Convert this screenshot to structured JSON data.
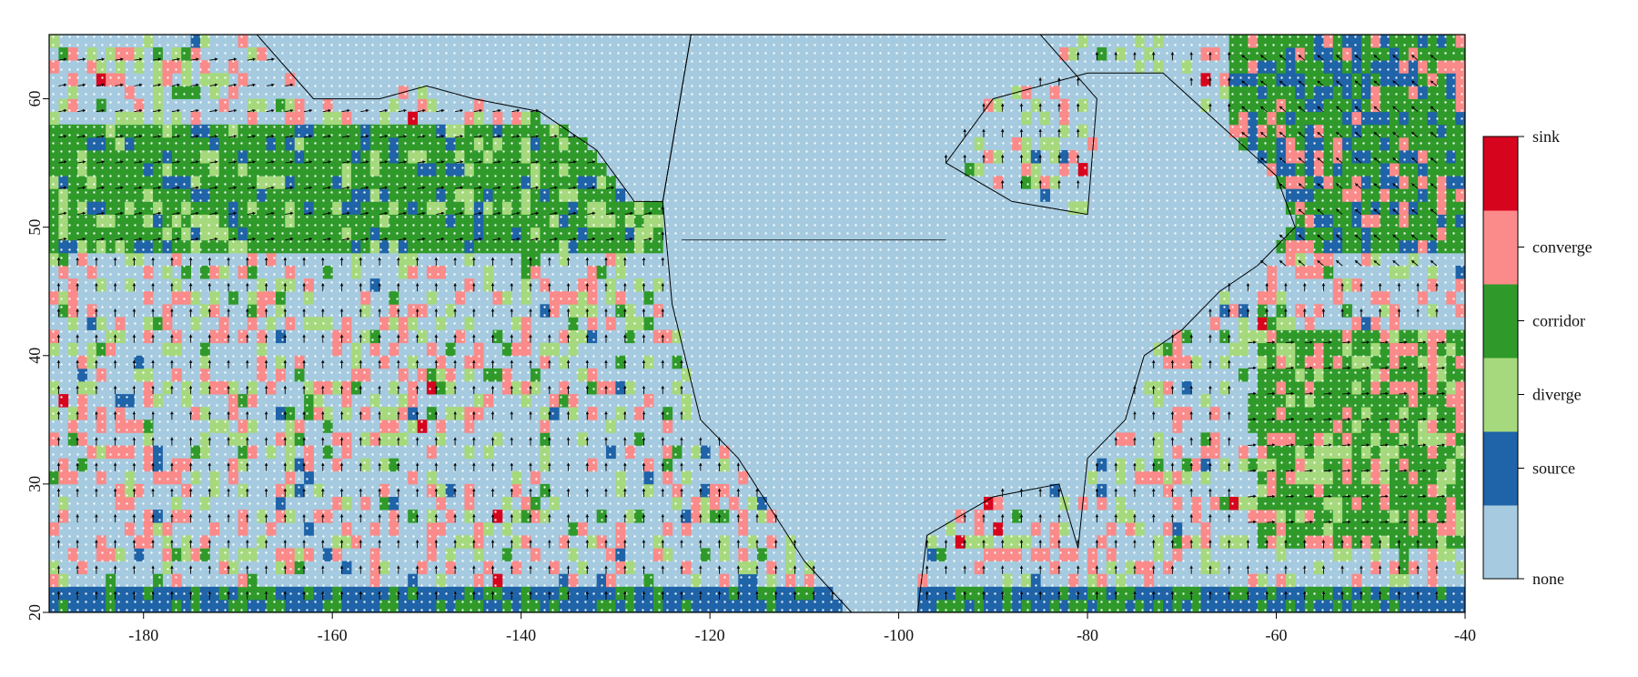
{
  "chart_data": {
    "type": "heatmap",
    "title": "",
    "xlabel": "",
    "ylabel": "",
    "xlim": [
      -190,
      -40
    ],
    "ylim": [
      20,
      65
    ],
    "x_ticks": [
      -180,
      -160,
      -140,
      -120,
      -100,
      -80,
      -60,
      -40
    ],
    "y_ticks": [
      20,
      30,
      40,
      50,
      60
    ],
    "x_tick_labels": [
      "-180",
      "-160",
      "-140",
      "-120",
      "-100",
      "-80",
      "-60",
      "-40"
    ],
    "y_tick_labels": [
      "20",
      "30",
      "40",
      "50",
      "60"
    ],
    "grid": false,
    "legend_position": "right",
    "categories": [
      "none",
      "source",
      "diverge",
      "corridor",
      "converge",
      "sink"
    ],
    "category_colors": {
      "none": "#a6cbe0",
      "source": "#1f63a8",
      "diverge": "#a6d97d",
      "corridor": "#2f9a2a",
      "converge": "#fb8a8a",
      "sink": "#d7041d"
    },
    "flow_arrows": "black vector arrows over ocean cells; white dots where flow is negligible"
  }
}
